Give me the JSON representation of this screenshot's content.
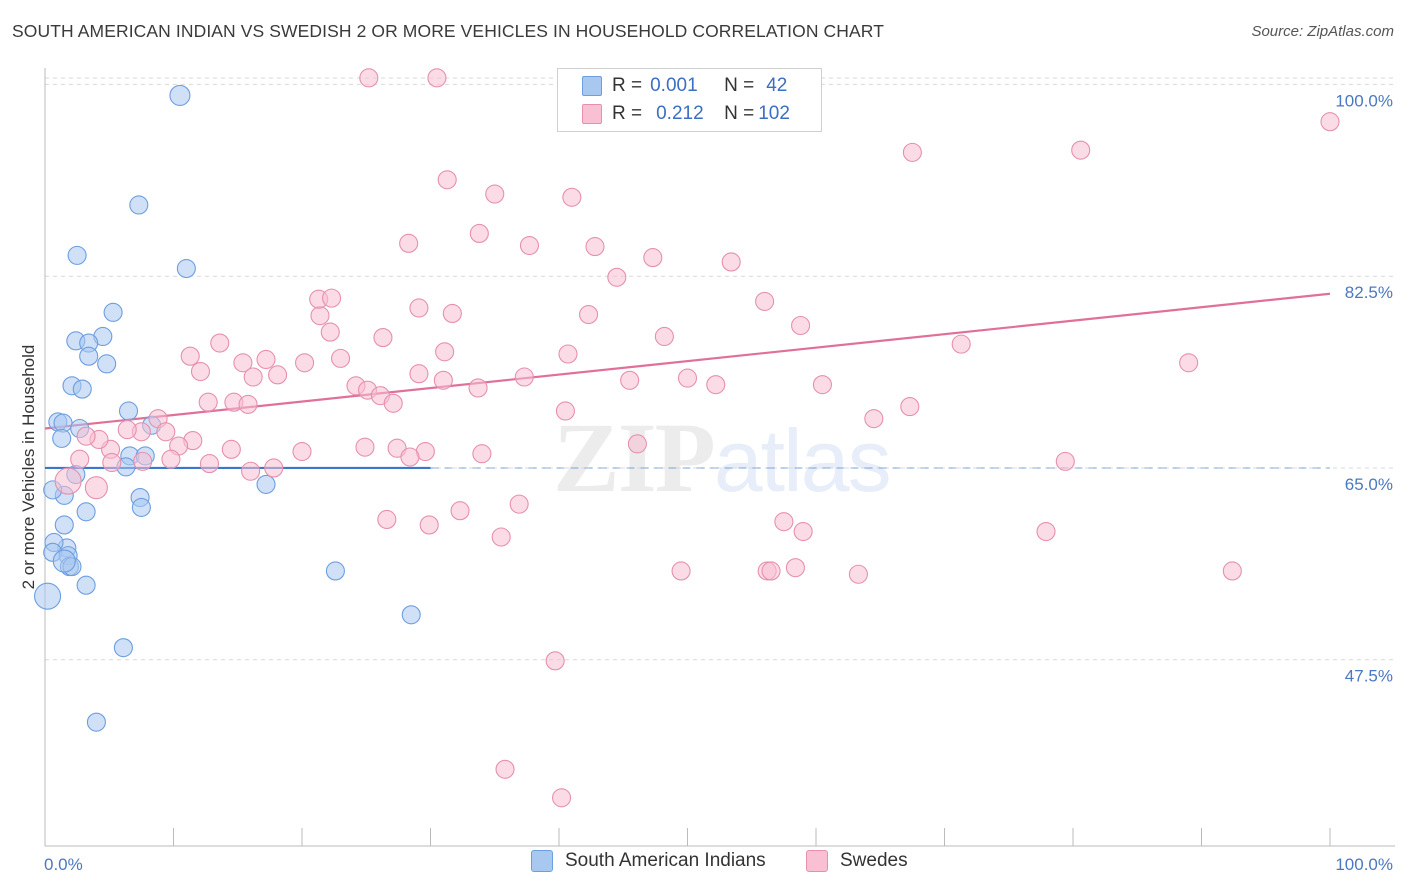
{
  "title": "SOUTH AMERICAN INDIAN VS SWEDISH 2 OR MORE VEHICLES IN HOUSEHOLD CORRELATION CHART",
  "source": "Source: ZipAtlas.com",
  "watermark": {
    "zip": "ZIP",
    "atlas": "atlas"
  },
  "stats": [
    {
      "r_label": "R =",
      "r_value": "0.001",
      "n_label": "N =",
      "n_value": "42",
      "color": "#a9c8f0",
      "border": "#6d9ee0"
    },
    {
      "r_label": "R =",
      "r_value": "0.212",
      "n_label": "N =",
      "n_value": "102",
      "color": "#f8c0d2",
      "border": "#e690ae"
    }
  ],
  "legend": [
    {
      "label": "South American Indians",
      "color": "#a9c8f0",
      "border": "#6d9ee0"
    },
    {
      "label": "Swedes",
      "color": "#f8c0d2",
      "border": "#e690ae"
    }
  ],
  "chart_data": {
    "type": "scatter",
    "title": "SOUTH AMERICAN INDIAN VS SWEDISH 2 OR MORE VEHICLES IN HOUSEHOLD CORRELATION CHART",
    "xlabel": "",
    "ylabel": "2 or more Vehicles in Household",
    "xlim": [
      0,
      100
    ],
    "ylim": [
      30.5,
      101.5
    ],
    "x_ticks": [
      "0.0%",
      "100.0%"
    ],
    "y_ticks": [
      {
        "value": 100.0,
        "label": "100.0%"
      },
      {
        "value": 82.5,
        "label": "82.5%"
      },
      {
        "value": 65.0,
        "label": "65.0%"
      },
      {
        "value": 47.5,
        "label": "47.5%"
      }
    ],
    "grid": true,
    "legend_position": "bottom",
    "colors": {
      "blue": "#6d9ee0",
      "blue_fill": "#a9c8f0",
      "pink": "#e690ae",
      "pink_fill": "#f8c0d2",
      "blue_line": "#3b78cc",
      "pink_line": "#e0709a"
    },
    "series": [
      {
        "name": "South American Indians",
        "color": "blue",
        "trend": {
          "x": [
            0,
            30
          ],
          "y": [
            65.0,
            65.0
          ],
          "dashed_to": 100
        },
        "points": [
          [
            10.5,
            99.0
          ],
          [
            7.3,
            89.0
          ],
          [
            2.5,
            84.4
          ],
          [
            11.0,
            83.2
          ],
          [
            5.3,
            79.2
          ],
          [
            4.5,
            77.0
          ],
          [
            2.4,
            76.6
          ],
          [
            3.4,
            76.4
          ],
          [
            3.4,
            75.2
          ],
          [
            4.8,
            74.5
          ],
          [
            2.1,
            72.5
          ],
          [
            2.9,
            72.2
          ],
          [
            1.0,
            69.2
          ],
          [
            1.4,
            69.1
          ],
          [
            6.5,
            70.2
          ],
          [
            8.3,
            68.9
          ],
          [
            2.7,
            68.6
          ],
          [
            1.3,
            67.7
          ],
          [
            6.6,
            66.1
          ],
          [
            7.8,
            66.1
          ],
          [
            6.3,
            65.1
          ],
          [
            17.2,
            63.5
          ],
          [
            2.4,
            64.4
          ],
          [
            1.5,
            62.5
          ],
          [
            0.6,
            63.0
          ],
          [
            7.4,
            62.3
          ],
          [
            7.5,
            61.4
          ],
          [
            3.2,
            61.0
          ],
          [
            1.5,
            59.8
          ],
          [
            1.7,
            57.7
          ],
          [
            0.7,
            58.2
          ],
          [
            0.6,
            57.3
          ],
          [
            1.8,
            57.0
          ],
          [
            1.9,
            56.0
          ],
          [
            2.1,
            56.0
          ],
          [
            22.6,
            55.6
          ],
          [
            3.2,
            54.3
          ],
          [
            0.2,
            53.3
          ],
          [
            28.5,
            51.6
          ],
          [
            6.1,
            48.6
          ],
          [
            4.0,
            41.8
          ],
          [
            1.5,
            56.5
          ]
        ],
        "sizes": [
          10,
          9,
          9,
          9,
          9,
          9,
          9,
          9,
          9,
          9,
          9,
          9,
          9,
          9,
          9,
          9,
          9,
          9,
          9,
          9,
          9,
          9,
          9,
          9,
          9,
          9,
          9,
          9,
          9,
          9,
          9,
          9,
          9,
          9,
          9,
          9,
          9,
          13,
          9,
          9,
          9,
          11
        ]
      },
      {
        "name": "Swedes",
        "color": "pink",
        "trend": {
          "x": [
            0,
            100
          ],
          "y": [
            68.6,
            80.9
          ]
        },
        "points": [
          [
            25.2,
            100.6
          ],
          [
            30.5,
            100.6
          ],
          [
            56.5,
            97.8
          ],
          [
            67.5,
            93.8
          ],
          [
            80.6,
            94.0
          ],
          [
            100.0,
            96.6
          ],
          [
            31.3,
            91.3
          ],
          [
            35.0,
            90.0
          ],
          [
            41.0,
            89.7
          ],
          [
            33.8,
            86.4
          ],
          [
            28.3,
            85.5
          ],
          [
            37.7,
            85.3
          ],
          [
            42.8,
            85.2
          ],
          [
            47.3,
            84.2
          ],
          [
            53.4,
            83.8
          ],
          [
            13.6,
            76.4
          ],
          [
            26.3,
            76.9
          ],
          [
            29.1,
            79.6
          ],
          [
            31.7,
            79.1
          ],
          [
            21.4,
            78.9
          ],
          [
            22.2,
            77.4
          ],
          [
            15.4,
            74.6
          ],
          [
            11.3,
            75.2
          ],
          [
            20.2,
            74.6
          ],
          [
            23.0,
            75.0
          ],
          [
            21.3,
            80.4
          ],
          [
            22.3,
            80.5
          ],
          [
            17.2,
            74.9
          ],
          [
            12.1,
            73.8
          ],
          [
            8.8,
            69.5
          ],
          [
            12.7,
            71.0
          ],
          [
            14.7,
            71.0
          ],
          [
            15.8,
            70.8
          ],
          [
            16.2,
            73.3
          ],
          [
            18.1,
            73.5
          ],
          [
            24.2,
            72.5
          ],
          [
            25.1,
            72.1
          ],
          [
            26.1,
            71.6
          ],
          [
            27.1,
            70.9
          ],
          [
            29.1,
            73.6
          ],
          [
            31.0,
            73.0
          ],
          [
            31.1,
            75.6
          ],
          [
            33.7,
            72.3
          ],
          [
            37.3,
            73.3
          ],
          [
            40.7,
            75.4
          ],
          [
            42.3,
            79.0
          ],
          [
            44.5,
            82.4
          ],
          [
            48.2,
            77.0
          ],
          [
            50.0,
            73.2
          ],
          [
            52.2,
            72.6
          ],
          [
            45.5,
            73.0
          ],
          [
            40.5,
            70.2
          ],
          [
            29.6,
            66.5
          ],
          [
            27.4,
            66.8
          ],
          [
            14.5,
            66.7
          ],
          [
            11.5,
            67.5
          ],
          [
            10.4,
            67.0
          ],
          [
            9.4,
            68.3
          ],
          [
            7.5,
            68.3
          ],
          [
            6.4,
            68.5
          ],
          [
            5.1,
            66.7
          ],
          [
            4.2,
            67.6
          ],
          [
            3.2,
            67.9
          ],
          [
            2.7,
            65.8
          ],
          [
            1.8,
            63.8
          ],
          [
            4.0,
            63.2
          ],
          [
            5.2,
            65.5
          ],
          [
            7.6,
            65.6
          ],
          [
            9.8,
            65.8
          ],
          [
            12.8,
            65.4
          ],
          [
            16.0,
            64.7
          ],
          [
            17.8,
            65.0
          ],
          [
            20.0,
            66.5
          ],
          [
            24.9,
            66.9
          ],
          [
            28.4,
            66.0
          ],
          [
            34.0,
            66.3
          ],
          [
            32.3,
            61.1
          ],
          [
            36.9,
            61.7
          ],
          [
            26.6,
            60.3
          ],
          [
            29.9,
            59.8
          ],
          [
            35.5,
            58.7
          ],
          [
            46.1,
            67.2
          ],
          [
            60.5,
            72.6
          ],
          [
            58.8,
            78.0
          ],
          [
            56.0,
            80.2
          ],
          [
            64.5,
            69.5
          ],
          [
            67.3,
            70.6
          ],
          [
            71.3,
            76.3
          ],
          [
            89.0,
            74.6
          ],
          [
            79.4,
            65.6
          ],
          [
            77.9,
            59.2
          ],
          [
            59.0,
            59.2
          ],
          [
            57.5,
            60.1
          ],
          [
            39.7,
            47.4
          ],
          [
            35.8,
            37.5
          ],
          [
            40.2,
            34.9
          ],
          [
            49.5,
            55.6
          ],
          [
            56.2,
            55.6
          ],
          [
            56.5,
            55.6
          ],
          [
            58.4,
            55.9
          ],
          [
            63.3,
            55.3
          ],
          [
            92.4,
            55.6
          ]
        ],
        "sizes": [
          9,
          9,
          9,
          9,
          9,
          9,
          9,
          9,
          9,
          9,
          9,
          9,
          9,
          9,
          9,
          9,
          9,
          9,
          9,
          9,
          9,
          9,
          9,
          9,
          9,
          9,
          9,
          9,
          9,
          9,
          9,
          9,
          9,
          9,
          9,
          9,
          9,
          9,
          9,
          9,
          9,
          9,
          9,
          9,
          9,
          9,
          9,
          9,
          9,
          9,
          9,
          9,
          9,
          9,
          9,
          9,
          9,
          9,
          9,
          9,
          9,
          9,
          9,
          9,
          13,
          11,
          9,
          9,
          9,
          9,
          9,
          9,
          9,
          9,
          9,
          9,
          9,
          9,
          9,
          9,
          9,
          9,
          9,
          9,
          9,
          9,
          9,
          9,
          9,
          9,
          9,
          9,
          9,
          9,
          9,
          9,
          9,
          9,
          9,
          9,
          9,
          9
        ]
      }
    ]
  }
}
